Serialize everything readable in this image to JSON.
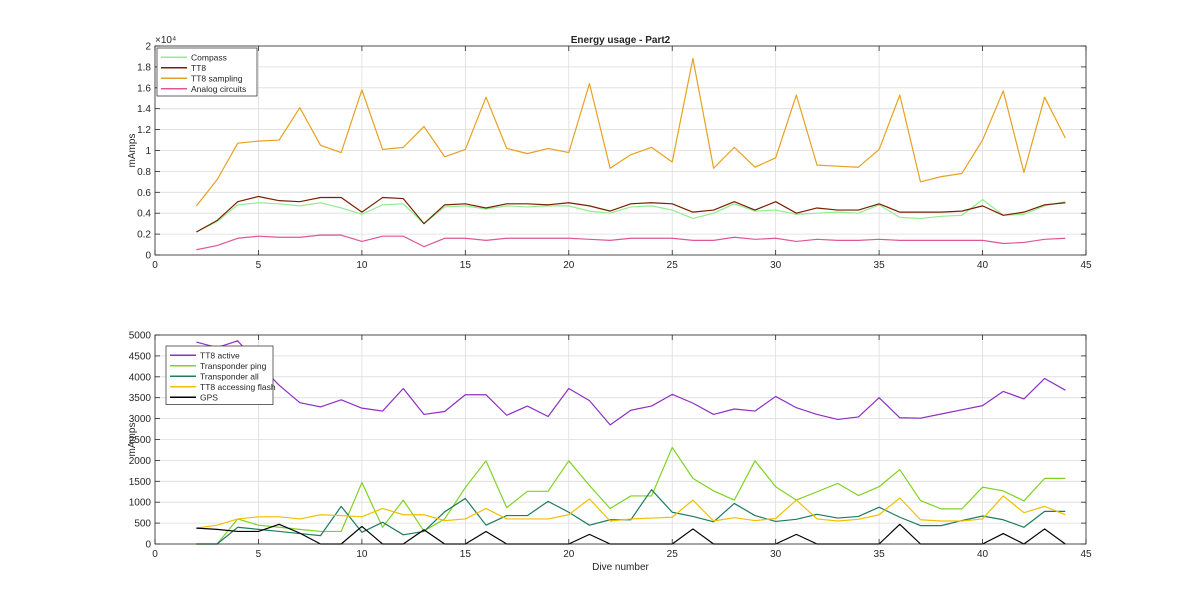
{
  "chart_data": [
    {
      "type": "line",
      "title": "Energy usage - Part2",
      "xlabel": "",
      "ylabel": "mAmps",
      "xlim": [
        0,
        45
      ],
      "ylim": [
        0,
        20000
      ],
      "y_exponent_label": "×10⁴",
      "x_ticks": [
        0,
        5,
        10,
        15,
        20,
        25,
        30,
        35,
        40,
        45
      ],
      "x_tick_labels": [
        "0",
        "5",
        "10",
        "15",
        "20",
        "25",
        "30",
        "35",
        "40",
        "45"
      ],
      "y_ticks": [
        0,
        2000,
        4000,
        6000,
        8000,
        10000,
        12000,
        14000,
        16000,
        18000,
        20000
      ],
      "y_tick_labels": [
        "0",
        "0.2",
        "0.4",
        "0.6",
        "0.8",
        "1",
        "1.2",
        "1.4",
        "1.6",
        "1.8",
        "2"
      ],
      "grid": true,
      "legend_position": "top-left",
      "x": [
        2,
        3,
        4,
        5,
        6,
        7,
        8,
        9,
        10,
        11,
        12,
        13,
        14,
        15,
        16,
        17,
        18,
        19,
        20,
        21,
        22,
        23,
        24,
        25,
        26,
        27,
        28,
        29,
        30,
        31,
        32,
        33,
        34,
        35,
        36,
        37,
        38,
        39,
        40,
        41,
        42,
        43,
        44
      ],
      "series": [
        {
          "name": "Compass",
          "color": "#90ee90",
          "values": [
            2200,
            3200,
            4800,
            5000,
            4900,
            4700,
            5000,
            4500,
            3900,
            4800,
            4900,
            3000,
            4600,
            4700,
            4400,
            4700,
            4600,
            4700,
            4700,
            4200,
            4000,
            4600,
            4700,
            4300,
            3500,
            4000,
            4900,
            4200,
            4300,
            3900,
            4000,
            4100,
            4000,
            4800,
            3600,
            3500,
            3700,
            3800,
            5300,
            3800,
            3900,
            4700,
            5100
          ]
        },
        {
          "name": "TT8",
          "color": "#7a1f00",
          "values": [
            2200,
            3300,
            5100,
            5600,
            5200,
            5100,
            5500,
            5500,
            4100,
            5500,
            5400,
            3000,
            4800,
            4900,
            4500,
            4900,
            4900,
            4800,
            5000,
            4700,
            4200,
            4900,
            5000,
            4900,
            4100,
            4300,
            5100,
            4300,
            5100,
            4000,
            4500,
            4300,
            4300,
            4900,
            4100,
            4100,
            4100,
            4200,
            4700,
            3800,
            4100,
            4800,
            5000
          ]
        },
        {
          "name": "TT8 sampling",
          "color": "#e8a020",
          "values": [
            4700,
            7200,
            10700,
            10900,
            11000,
            14100,
            10500,
            9800,
            15800,
            10100,
            10300,
            12300,
            9400,
            10100,
            15100,
            10200,
            9700,
            10200,
            9800,
            16400,
            8300,
            9600,
            10300,
            8900,
            18800,
            8300,
            10300,
            8400,
            9300,
            15300,
            8600,
            8500,
            8400,
            10100,
            15300,
            7000,
            7500,
            7800,
            11000,
            15700,
            7900,
            15100,
            11200
          ]
        },
        {
          "name": "Analog circuits",
          "color": "#e0559a",
          "values": [
            500,
            900,
            1600,
            1800,
            1700,
            1700,
            1900,
            1900,
            1300,
            1800,
            1800,
            800,
            1600,
            1600,
            1400,
            1600,
            1600,
            1600,
            1600,
            1500,
            1400,
            1600,
            1600,
            1600,
            1400,
            1400,
            1700,
            1500,
            1600,
            1300,
            1500,
            1400,
            1400,
            1500,
            1400,
            1400,
            1400,
            1400,
            1400,
            1100,
            1200,
            1500,
            1600
          ]
        }
      ]
    },
    {
      "type": "line",
      "title": "",
      "xlabel": "Dive number",
      "ylabel": "mAmps",
      "xlim": [
        0,
        45
      ],
      "ylim": [
        0,
        5000
      ],
      "x_ticks": [
        0,
        5,
        10,
        15,
        20,
        25,
        30,
        35,
        40,
        45
      ],
      "x_tick_labels": [
        "0",
        "5",
        "10",
        "15",
        "20",
        "25",
        "30",
        "35",
        "40",
        "45"
      ],
      "y_ticks": [
        0,
        500,
        1000,
        1500,
        2000,
        2500,
        3000,
        3500,
        4000,
        4500,
        5000
      ],
      "y_tick_labels": [
        "0",
        "500",
        "1000",
        "1500",
        "2000",
        "2500",
        "3000",
        "3500",
        "4000",
        "4500",
        "5000"
      ],
      "grid": true,
      "legend_position": "top-left",
      "x": [
        2,
        3,
        4,
        5,
        6,
        7,
        8,
        9,
        10,
        11,
        12,
        13,
        14,
        15,
        16,
        17,
        18,
        19,
        20,
        21,
        22,
        23,
        24,
        25,
        26,
        27,
        28,
        29,
        30,
        31,
        32,
        33,
        34,
        35,
        36,
        37,
        38,
        39,
        40,
        41,
        42,
        43,
        44
      ],
      "series": [
        {
          "name": "TT8 active",
          "color": "#8e2fc4",
          "values": [
            4830,
            4700,
            4860,
            4300,
            3800,
            3380,
            3280,
            3450,
            3250,
            3180,
            3720,
            3100,
            3170,
            3570,
            3570,
            3080,
            3300,
            3050,
            3720,
            3430,
            2850,
            3200,
            3300,
            3580,
            3370,
            3100,
            3230,
            3180,
            3530,
            3260,
            3100,
            2980,
            3040,
            3500,
            3020,
            3010,
            3110,
            3210,
            3310,
            3650,
            3470,
            3960,
            3680
          ]
        },
        {
          "name": "Transponder ping",
          "color": "#7ed321",
          "values": [
            0,
            0,
            600,
            450,
            400,
            350,
            300,
            300,
            1470,
            400,
            1050,
            310,
            600,
            1350,
            1990,
            870,
            1260,
            1260,
            1990,
            1400,
            850,
            1150,
            1150,
            2310,
            1570,
            1270,
            1050,
            1990,
            1370,
            1050,
            1250,
            1450,
            1160,
            1370,
            1780,
            1040,
            840,
            840,
            1360,
            1270,
            1030,
            1570,
            1570
          ]
        },
        {
          "name": "Transponder all",
          "color": "#1e7b5e",
          "values": [
            0,
            0,
            400,
            350,
            300,
            250,
            200,
            900,
            280,
            520,
            220,
            300,
            770,
            1090,
            450,
            680,
            680,
            1020,
            760,
            450,
            580,
            580,
            1300,
            760,
            660,
            530,
            970,
            680,
            540,
            590,
            710,
            620,
            660,
            880,
            640,
            440,
            440,
            560,
            670,
            580,
            400,
            780,
            780
          ]
        },
        {
          "name": "TT8 accessing flash",
          "color": "#f0c000",
          "values": [
            380,
            450,
            600,
            650,
            650,
            600,
            700,
            680,
            650,
            850,
            700,
            700,
            560,
            600,
            850,
            600,
            600,
            600,
            700,
            1080,
            550,
            600,
            620,
            640,
            1050,
            550,
            630,
            560,
            610,
            1050,
            600,
            550,
            590,
            700,
            1100,
            580,
            550,
            550,
            600,
            1150,
            750,
            900,
            700
          ]
        },
        {
          "name": "GPS",
          "color": "#000000",
          "values": [
            380,
            350,
            300,
            300,
            470,
            260,
            0,
            0,
            420,
            0,
            0,
            340,
            0,
            0,
            300,
            0,
            0,
            0,
            0,
            230,
            0,
            0,
            0,
            0,
            360,
            0,
            0,
            0,
            0,
            230,
            0,
            0,
            0,
            0,
            470,
            0,
            0,
            0,
            0,
            250,
            0,
            360,
            0
          ]
        }
      ]
    }
  ]
}
